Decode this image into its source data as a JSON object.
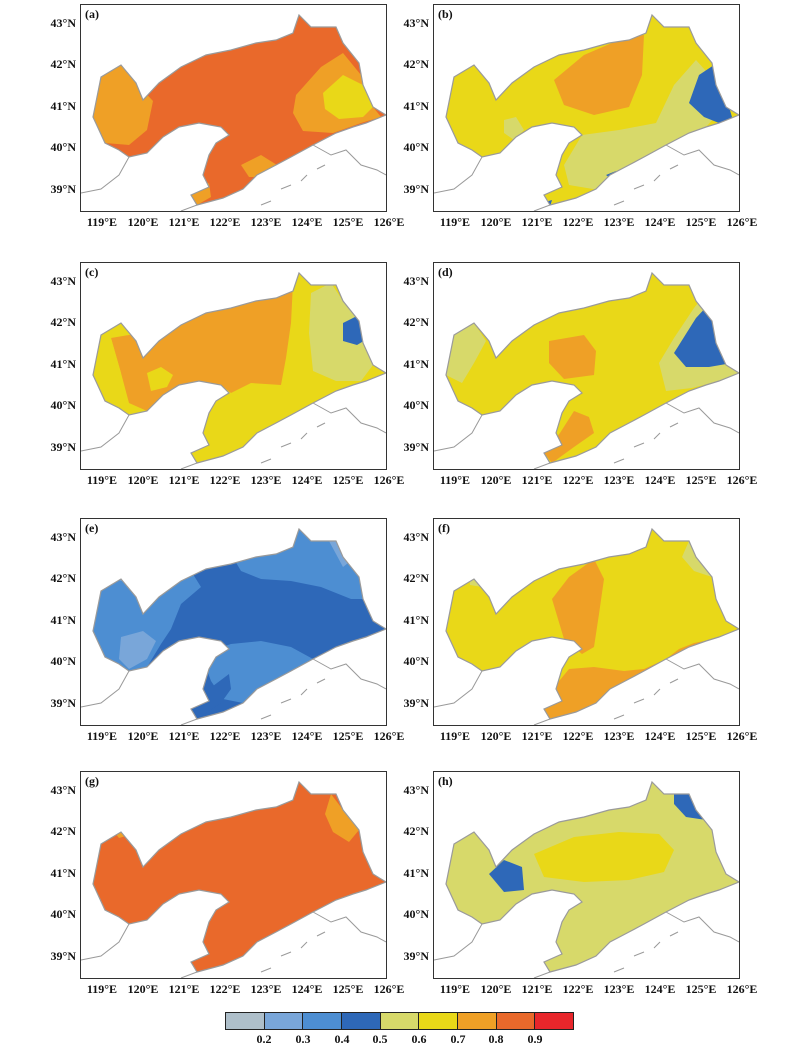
{
  "colors": {
    "c02": "#aebfca",
    "c03": "#79a6d9",
    "c04": "#4d8ed2",
    "c05": "#2e68b8",
    "c06": "#d7d96a",
    "c07": "#e9d818",
    "c08": "#efa026",
    "c09": "#e9692b",
    "c10": "#e8262b",
    "coast": "#9a9a9a",
    "frame": "#333333"
  },
  "lat_labels": [
    "43°N",
    "42°N",
    "41°N",
    "40°N",
    "39°N"
  ],
  "lon_labels": [
    "119°E",
    "120°E",
    "121°E",
    "122°E",
    "123°E",
    "124°E",
    "125°E",
    "126°E"
  ],
  "panels": [
    {
      "label": "(a)",
      "base": "c09"
    },
    {
      "label": "(b)",
      "base": "c07"
    },
    {
      "label": "(c)",
      "base": "c07"
    },
    {
      "label": "(d)",
      "base": "c07"
    },
    {
      "label": "(e)",
      "base": "c05"
    },
    {
      "label": "(f)",
      "base": "c07"
    },
    {
      "label": "(g)",
      "base": "c09"
    },
    {
      "label": "(h)",
      "base": "c06"
    }
  ],
  "colorbar": {
    "colors": [
      "#aebfca",
      "#79a6d9",
      "#4d8ed2",
      "#2e68b8",
      "#d7d96a",
      "#e9d818",
      "#efa026",
      "#e9692b",
      "#e8262b"
    ],
    "labels": [
      "0.2",
      "0.3",
      "0.4",
      "0.5",
      "0.6",
      "0.7",
      "0.8",
      "0.9"
    ]
  }
}
